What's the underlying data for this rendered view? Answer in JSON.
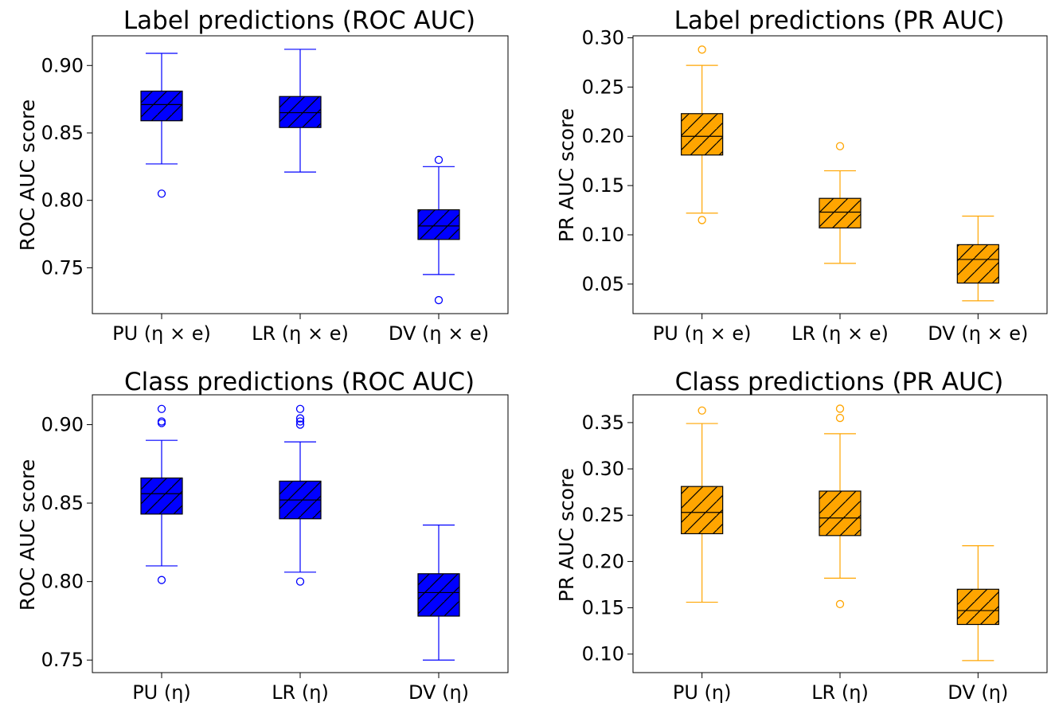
{
  "chart_data": [
    {
      "type": "box",
      "title": "Label predictions (ROC AUC)",
      "ylabel": "ROC AUC score",
      "ylim": [
        0.716,
        0.922
      ],
      "yticks": [
        "0.75",
        "0.80",
        "0.85",
        "0.90"
      ],
      "color": "#0000ff",
      "categories": [
        "PU (η × e)",
        "LR (η × e)",
        "DV (η × e)"
      ],
      "boxes": [
        {
          "whisker_low": 0.827,
          "q1": 0.859,
          "median": 0.871,
          "q3": 0.881,
          "whisker_high": 0.909,
          "outliers": [
            0.805
          ]
        },
        {
          "whisker_low": 0.821,
          "q1": 0.854,
          "median": 0.865,
          "q3": 0.877,
          "whisker_high": 0.912,
          "outliers": []
        },
        {
          "whisker_low": 0.745,
          "q1": 0.771,
          "median": 0.781,
          "q3": 0.793,
          "whisker_high": 0.825,
          "outliers": [
            0.83,
            0.726
          ]
        }
      ]
    },
    {
      "type": "box",
      "title": "Label predictions (PR AUC)",
      "ylabel": "PR AUC score",
      "ylim": [
        0.02,
        0.302
      ],
      "yticks": [
        "0.05",
        "0.10",
        "0.15",
        "0.20",
        "0.25",
        "0.30"
      ],
      "color": "#ffa500",
      "categories": [
        "PU (η × e)",
        "LR (η × e)",
        "DV (η × e)"
      ],
      "boxes": [
        {
          "whisker_low": 0.122,
          "q1": 0.181,
          "median": 0.2,
          "q3": 0.223,
          "whisker_high": 0.272,
          "outliers": [
            0.288,
            0.115
          ]
        },
        {
          "whisker_low": 0.071,
          "q1": 0.107,
          "median": 0.123,
          "q3": 0.137,
          "whisker_high": 0.165,
          "outliers": [
            0.19
          ]
        },
        {
          "whisker_low": 0.033,
          "q1": 0.051,
          "median": 0.075,
          "q3": 0.09,
          "whisker_high": 0.119,
          "outliers": []
        }
      ]
    },
    {
      "type": "box",
      "title": "Class predictions (ROC AUC)",
      "ylabel": "ROC AUC score",
      "ylim": [
        0.742,
        0.919
      ],
      "yticks": [
        "0.75",
        "0.80",
        "0.85",
        "0.90"
      ],
      "color": "#0000ff",
      "categories": [
        "PU (η)",
        "LR (η)",
        "DV (η)"
      ],
      "boxes": [
        {
          "whisker_low": 0.81,
          "q1": 0.843,
          "median": 0.856,
          "q3": 0.866,
          "whisker_high": 0.89,
          "outliers": [
            0.91,
            0.902,
            0.901,
            0.801
          ]
        },
        {
          "whisker_low": 0.806,
          "q1": 0.84,
          "median": 0.852,
          "q3": 0.864,
          "whisker_high": 0.889,
          "outliers": [
            0.91,
            0.904,
            0.902,
            0.9,
            0.8
          ]
        },
        {
          "whisker_low": 0.75,
          "q1": 0.778,
          "median": 0.793,
          "q3": 0.805,
          "whisker_high": 0.836,
          "outliers": []
        }
      ]
    },
    {
      "type": "box",
      "title": "Class predictions (PR AUC)",
      "ylabel": "PR AUC score",
      "ylim": [
        0.08,
        0.38
      ],
      "yticks": [
        "0.10",
        "0.15",
        "0.20",
        "0.25",
        "0.30",
        "0.35"
      ],
      "color": "#ffa500",
      "categories": [
        "PU (η)",
        "LR (η)",
        "DV (η)"
      ],
      "boxes": [
        {
          "whisker_low": 0.156,
          "q1": 0.23,
          "median": 0.253,
          "q3": 0.281,
          "whisker_high": 0.349,
          "outliers": [
            0.363
          ]
        },
        {
          "whisker_low": 0.182,
          "q1": 0.228,
          "median": 0.247,
          "q3": 0.276,
          "whisker_high": 0.338,
          "outliers": [
            0.365,
            0.355,
            0.154
          ]
        },
        {
          "whisker_low": 0.093,
          "q1": 0.132,
          "median": 0.147,
          "q3": 0.17,
          "whisker_high": 0.217,
          "outliers": []
        }
      ]
    }
  ]
}
